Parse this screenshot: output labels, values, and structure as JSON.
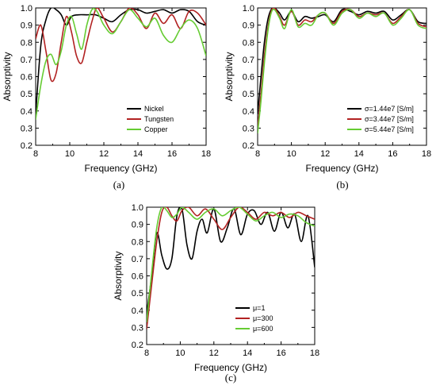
{
  "colors": {
    "black": "#000000",
    "red": "#b22222",
    "green": "#66cc33"
  },
  "chart_data": [
    {
      "type": "line",
      "panel_label": "(a)",
      "xlabel": "Frequency (GHz)",
      "ylabel": "Absorptivity",
      "xlim": [
        8,
        18
      ],
      "ylim": [
        0.2,
        1.0
      ],
      "xticks": [
        "8",
        "10",
        "12",
        "14",
        "16",
        "18"
      ],
      "yticks": [
        "0.2",
        "0.3",
        "0.4",
        "0.5",
        "0.6",
        "0.7",
        "0.8",
        "0.9",
        "1.0"
      ],
      "legend_position": "bottom-right",
      "series": [
        {
          "name": "Nickel",
          "color": "#000000",
          "x": [
            8,
            8.3,
            8.6,
            8.9,
            9.2,
            9.5,
            9.8,
            10.1,
            10.5,
            11,
            11.5,
            12,
            12.5,
            13,
            13.5,
            14,
            14.5,
            15,
            15.5,
            16,
            16.5,
            17,
            17.5,
            18
          ],
          "y": [
            0.38,
            0.78,
            0.93,
            1.0,
            0.99,
            0.96,
            0.9,
            0.95,
            0.96,
            0.96,
            0.96,
            0.94,
            0.92,
            0.96,
            0.99,
            0.99,
            0.97,
            0.98,
            0.99,
            0.97,
            0.99,
            0.98,
            0.92,
            0.9
          ]
        },
        {
          "name": "Tungsten",
          "color": "#b22222",
          "x": [
            8,
            8.3,
            8.6,
            8.9,
            9.2,
            9.5,
            9.8,
            10.1,
            10.4,
            10.7,
            11,
            11.3,
            11.6,
            12,
            12.5,
            13,
            13.5,
            14,
            14.5,
            15,
            15.5,
            16,
            16.5,
            17,
            17.5,
            18
          ],
          "y": [
            0.82,
            0.9,
            0.75,
            0.58,
            0.62,
            0.8,
            0.95,
            0.86,
            0.72,
            0.68,
            0.8,
            0.92,
            1.0,
            0.94,
            0.86,
            0.92,
            1.0,
            0.96,
            0.88,
            0.97,
            0.91,
            0.96,
            0.88,
            0.98,
            0.97,
            0.9
          ]
        },
        {
          "name": "Copper",
          "color": "#66cc33",
          "x": [
            8,
            8.3,
            8.6,
            8.9,
            9.2,
            9.5,
            9.8,
            10.1,
            10.4,
            10.7,
            11,
            11.3,
            11.6,
            12,
            12.5,
            13,
            13.5,
            14,
            14.5,
            15,
            15.5,
            16,
            16.5,
            17,
            17.5,
            18
          ],
          "y": [
            0.35,
            0.55,
            0.69,
            0.73,
            0.67,
            0.75,
            0.9,
            0.95,
            0.85,
            0.76,
            0.9,
            0.99,
            0.98,
            0.9,
            0.85,
            0.92,
            0.99,
            0.94,
            0.89,
            0.94,
            0.84,
            0.8,
            0.88,
            0.93,
            0.88,
            0.72
          ]
        }
      ]
    },
    {
      "type": "line",
      "panel_label": "(b)",
      "xlabel": "Frequency (GHz)",
      "ylabel": "Absorptivity",
      "xlim": [
        8,
        18
      ],
      "ylim": [
        0.2,
        1.0
      ],
      "xticks": [
        "8",
        "10",
        "12",
        "14",
        "16",
        "18"
      ],
      "yticks": [
        "0.2",
        "0.3",
        "0.4",
        "0.5",
        "0.6",
        "0.7",
        "0.8",
        "0.9",
        "1.0"
      ],
      "legend_position": "bottom-right",
      "series": [
        {
          "name": "σ=1.44e7 [S/m]",
          "color": "#000000",
          "x": [
            8,
            8.2,
            8.4,
            8.6,
            8.8,
            9.0,
            9.3,
            9.6,
            10,
            10.4,
            10.8,
            11.2,
            11.6,
            12,
            12.5,
            13,
            13.5,
            14,
            14.5,
            15,
            15.5,
            16,
            16.5,
            17,
            17.5,
            18
          ],
          "y": [
            0.38,
            0.6,
            0.8,
            0.93,
            0.99,
            1.0,
            0.97,
            0.93,
            0.98,
            0.92,
            0.95,
            0.94,
            0.95,
            0.96,
            0.92,
            0.99,
            0.98,
            0.96,
            0.98,
            0.97,
            0.98,
            0.93,
            0.96,
            0.99,
            0.92,
            0.91
          ]
        },
        {
          "name": "σ=3.44e7 [S/m]",
          "color": "#b22222",
          "x": [
            8,
            8.2,
            8.4,
            8.6,
            8.8,
            9.0,
            9.3,
            9.6,
            10,
            10.4,
            10.8,
            11.2,
            11.6,
            12,
            12.5,
            13,
            13.5,
            14,
            14.5,
            15,
            15.5,
            16,
            16.5,
            17,
            17.5,
            18
          ],
          "y": [
            0.3,
            0.5,
            0.72,
            0.88,
            0.98,
            1.0,
            0.95,
            0.9,
            0.98,
            0.9,
            0.93,
            0.92,
            0.96,
            0.97,
            0.91,
            0.98,
            0.99,
            0.95,
            0.97,
            0.96,
            0.97,
            0.91,
            0.95,
            0.99,
            0.91,
            0.89
          ]
        },
        {
          "name": "σ=5.44e7 [S/m]",
          "color": "#66cc33",
          "x": [
            8,
            8.2,
            8.4,
            8.6,
            8.8,
            9.0,
            9.3,
            9.6,
            10,
            10.4,
            10.8,
            11.2,
            11.6,
            12,
            12.5,
            13,
            13.5,
            14,
            14.5,
            15,
            15.5,
            16,
            16.5,
            17,
            17.5,
            18
          ],
          "y": [
            0.27,
            0.46,
            0.68,
            0.86,
            0.97,
            0.99,
            0.94,
            0.88,
            0.99,
            0.89,
            0.91,
            0.9,
            0.96,
            0.97,
            0.9,
            0.97,
            0.99,
            0.94,
            0.97,
            0.95,
            0.97,
            0.9,
            0.94,
            0.99,
            0.9,
            0.88
          ]
        }
      ]
    },
    {
      "type": "line",
      "panel_label": "(c)",
      "xlabel": "Frequency (GHz)",
      "ylabel": "Absorptivity",
      "xlim": [
        8,
        18
      ],
      "ylim": [
        0.2,
        1.0
      ],
      "xticks": [
        "8",
        "10",
        "12",
        "14",
        "16",
        "18"
      ],
      "yticks": [
        "0.2",
        "0.3",
        "0.4",
        "0.5",
        "0.6",
        "0.7",
        "0.8",
        "0.9",
        "1.0"
      ],
      "legend_position": "bottom-right",
      "series": [
        {
          "name": "μ=1",
          "color": "#000000",
          "x": [
            8,
            8.3,
            8.6,
            8.9,
            9.2,
            9.5,
            9.8,
            10.1,
            10.4,
            10.7,
            11,
            11.3,
            11.6,
            12,
            12.4,
            12.8,
            13.2,
            13.6,
            14,
            14.4,
            14.8,
            15.2,
            15.6,
            16,
            16.4,
            16.8,
            17.2,
            17.6,
            18
          ],
          "y": [
            0.38,
            0.6,
            0.85,
            0.72,
            0.64,
            0.7,
            0.95,
            0.99,
            0.78,
            0.7,
            0.86,
            0.93,
            0.85,
            0.99,
            0.8,
            0.88,
            0.99,
            0.84,
            0.96,
            0.98,
            0.9,
            0.97,
            0.86,
            0.97,
            0.88,
            0.96,
            0.8,
            0.95,
            0.65
          ]
        },
        {
          "name": "μ=300",
          "color": "#b22222",
          "x": [
            8,
            8.3,
            8.6,
            8.9,
            9.2,
            9.5,
            9.8,
            10.1,
            10.5,
            11,
            11.5,
            12,
            12.5,
            13,
            13.5,
            14,
            14.5,
            15,
            15.5,
            16,
            16.5,
            17,
            17.5,
            18
          ],
          "y": [
            0.29,
            0.55,
            0.8,
            0.97,
            1.0,
            0.95,
            0.92,
            0.98,
            1.0,
            0.95,
            0.99,
            0.93,
            0.87,
            0.94,
            1.0,
            0.97,
            0.93,
            0.97,
            0.95,
            0.97,
            0.94,
            0.97,
            0.95,
            0.93
          ]
        },
        {
          "name": "μ=600",
          "color": "#66cc33",
          "x": [
            8,
            8.3,
            8.6,
            8.9,
            9.2,
            9.5,
            9.8,
            10.1,
            10.5,
            11,
            11.5,
            12,
            12.5,
            13,
            13.5,
            14,
            14.5,
            15,
            15.5,
            16,
            16.5,
            17,
            17.5,
            18
          ],
          "y": [
            0.33,
            0.62,
            0.88,
            1.0,
            0.98,
            0.94,
            0.96,
            1.0,
            0.97,
            0.93,
            0.97,
            0.99,
            0.95,
            0.98,
            1.0,
            0.96,
            0.92,
            0.95,
            0.97,
            0.94,
            0.96,
            0.95,
            0.91,
            0.89
          ]
        }
      ]
    }
  ]
}
